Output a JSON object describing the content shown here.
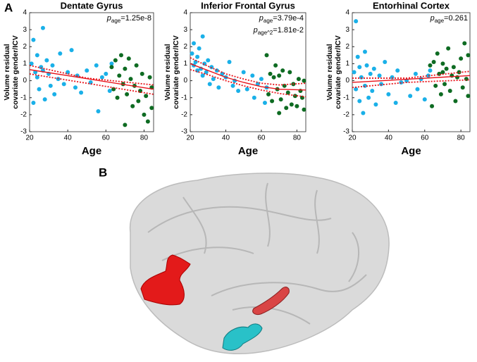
{
  "panel_labels": [
    "A",
    "B"
  ],
  "chart_data": [
    {
      "type": "scatter",
      "title": "Dentate Gyrus",
      "xlabel": "Age",
      "ylabel": [
        "Volume residual",
        "covariate gender/ICV"
      ],
      "annotations": [
        {
          "symbol": "p",
          "subscript": "age",
          "text": "=1.25e-8"
        }
      ],
      "xlim": [
        20,
        85
      ],
      "xticks": [
        20,
        40,
        60,
        80
      ],
      "ylim": [
        -3,
        4
      ],
      "yticks": [
        -3,
        -2,
        -1,
        0,
        1,
        2,
        3,
        4
      ],
      "series": [
        {
          "kind": "scatter",
          "color": "#1ab0e8",
          "x": [
            21,
            22,
            22,
            23,
            24,
            24,
            25,
            26,
            27,
            27,
            28,
            29,
            30,
            31,
            32,
            33,
            35,
            36,
            38,
            40,
            42,
            44,
            45,
            47,
            50,
            52,
            55,
            56,
            58,
            60,
            62,
            63
          ],
          "values": [
            1.0,
            2.4,
            -1.3,
            0.5,
            1.5,
            0.2,
            -0.5,
            0.8,
            3.1,
            0.6,
            -1.1,
            1.2,
            0.4,
            -0.3,
            0.9,
            -0.8,
            0.1,
            1.6,
            -0.2,
            0.5,
            1.8,
            -0.4,
            0.3,
            -0.7,
            0.6,
            -0.1,
            0.9,
            -1.8,
            0.2,
            0.4,
            -0.6,
            1.0
          ]
        },
        {
          "kind": "scatter",
          "color": "#0e6b22",
          "x": [
            63,
            64,
            65,
            66,
            67,
            68,
            69,
            70,
            70,
            71,
            72,
            73,
            74,
            75,
            76,
            77,
            78,
            79,
            80,
            81,
            82,
            83,
            84,
            84
          ],
          "values": [
            0.8,
            -0.5,
            1.2,
            -1.0,
            0.3,
            1.5,
            -0.2,
            -2.6,
            0.7,
            -0.8,
            1.3,
            0.1,
            -1.5,
            -0.3,
            0.9,
            -1.2,
            -0.6,
            0.4,
            -2.0,
            -0.9,
            -2.4,
            0.2,
            -1.6,
            -0.4
          ]
        },
        {
          "kind": "line",
          "style": "solid",
          "color": "#e8141b",
          "x": [
            20,
            85
          ],
          "values": [
            0.65,
            -0.5
          ]
        },
        {
          "kind": "line",
          "style": "dotted",
          "color": "#e8141b",
          "x": [
            20,
            50,
            85
          ],
          "values": [
            0.9,
            0.15,
            -0.25
          ]
        },
        {
          "kind": "line",
          "style": "dotted",
          "color": "#e8141b",
          "x": [
            20,
            50,
            85
          ],
          "values": [
            0.4,
            -0.15,
            -0.8
          ]
        }
      ]
    },
    {
      "type": "scatter",
      "title": "Inferior Frontal Gyrus",
      "xlabel": "Age",
      "ylabel": [
        "Volume residual",
        "covariate gender/ICV"
      ],
      "annotations": [
        {
          "symbol": "p",
          "subscript": "age",
          "text": "=3.79e-4"
        },
        {
          "symbol": "p",
          "subscript": "age^2",
          "text": "=1.81e-2"
        }
      ],
      "xlim": [
        20,
        85
      ],
      "xticks": [
        20,
        40,
        60,
        80
      ],
      "ylim": [
        -3,
        4
      ],
      "yticks": [
        -3,
        -2,
        -1,
        0,
        1,
        2,
        3,
        4
      ],
      "series": [
        {
          "kind": "scatter",
          "color": "#1ab0e8",
          "x": [
            21,
            22,
            22,
            23,
            24,
            24,
            25,
            26,
            27,
            27,
            28,
            29,
            30,
            31,
            32,
            33,
            35,
            36,
            38,
            40,
            42,
            44,
            45,
            47,
            50,
            52,
            55,
            56,
            58,
            60,
            62,
            63
          ],
          "values": [
            1.6,
            2.2,
            0.9,
            1.1,
            1.4,
            0.6,
            1.9,
            0.7,
            2.6,
            0.3,
            1.0,
            0.5,
            1.2,
            -0.2,
            0.8,
            0.1,
            0.6,
            -0.4,
            0.4,
            0.2,
            1.1,
            -0.3,
            0.0,
            -0.6,
            0.5,
            -0.5,
            0.3,
            -1.0,
            -0.2,
            0.1,
            -1.3,
            -0.4
          ]
        },
        {
          "kind": "scatter",
          "color": "#0e6b22",
          "x": [
            63,
            64,
            65,
            66,
            67,
            68,
            69,
            70,
            70,
            71,
            72,
            73,
            74,
            75,
            76,
            77,
            78,
            79,
            80,
            81,
            82,
            83,
            84,
            84
          ],
          "values": [
            1.5,
            -0.8,
            0.4,
            -1.2,
            0.2,
            0.9,
            -0.5,
            -1.9,
            0.3,
            -1.1,
            0.6,
            -0.3,
            -1.6,
            -0.7,
            0.5,
            -1.4,
            -0.2,
            -0.9,
            -1.5,
            0.1,
            -0.6,
            -1.0,
            -1.7,
            0.0
          ]
        },
        {
          "kind": "line",
          "style": "solid",
          "color": "#e8141b",
          "x": [
            20,
            30,
            40,
            50,
            60,
            70,
            85
          ],
          "values": [
            1.0,
            0.6,
            0.2,
            -0.1,
            -0.35,
            -0.5,
            -0.55
          ]
        },
        {
          "kind": "line",
          "style": "dotted",
          "color": "#e8141b",
          "x": [
            20,
            30,
            40,
            50,
            60,
            70,
            85
          ],
          "values": [
            1.35,
            0.85,
            0.4,
            0.1,
            -0.15,
            -0.25,
            -0.15
          ]
        },
        {
          "kind": "line",
          "style": "dotted",
          "color": "#e8141b",
          "x": [
            20,
            30,
            40,
            50,
            60,
            70,
            85
          ],
          "values": [
            0.65,
            0.35,
            0.0,
            -0.3,
            -0.55,
            -0.75,
            -0.95
          ]
        }
      ]
    },
    {
      "type": "scatter",
      "title": "Entorhinal Cortex",
      "xlabel": "Age",
      "ylabel": [
        "Volume residual",
        "covariate gender/ICV"
      ],
      "annotations": [
        {
          "symbol": "p",
          "subscript": "age",
          "text": "=0.261"
        }
      ],
      "xlim": [
        20,
        85
      ],
      "xticks": [
        20,
        40,
        60,
        80
      ],
      "ylim": [
        -3,
        4
      ],
      "yticks": [
        -3,
        -2,
        -1,
        0,
        1,
        2,
        3,
        4
      ],
      "series": [
        {
          "kind": "scatter",
          "color": "#1ab0e8",
          "x": [
            21,
            22,
            22,
            23,
            24,
            24,
            25,
            26,
            27,
            27,
            28,
            29,
            30,
            31,
            32,
            33,
            35,
            36,
            38,
            40,
            42,
            44,
            45,
            47,
            50,
            52,
            55,
            56,
            58,
            60,
            62,
            63
          ],
          "values": [
            0.5,
            3.5,
            -0.5,
            1.4,
            -1.2,
            0.8,
            0.2,
            -1.9,
            1.7,
            -0.3,
            0.9,
            -1.0,
            0.4,
            -0.6,
            0.7,
            -1.4,
            0.3,
            -0.2,
            1.1,
            -0.8,
            0.2,
            -1.3,
            0.6,
            -0.1,
            0.0,
            -0.9,
            0.4,
            -0.5,
            0.1,
            -1.1,
            0.3,
            0.6
          ]
        },
        {
          "kind": "scatter",
          "color": "#0e6b22",
          "x": [
            63,
            64,
            65,
            66,
            67,
            68,
            69,
            70,
            70,
            71,
            72,
            73,
            74,
            75,
            76,
            77,
            78,
            79,
            80,
            81,
            82,
            83,
            84,
            84
          ],
          "values": [
            0.9,
            -1.5,
            1.1,
            -0.3,
            1.6,
            0.4,
            -0.8,
            0.5,
            1.0,
            -0.2,
            0.7,
            1.9,
            -0.6,
            0.3,
            0.8,
            -1.2,
            0.2,
            0.5,
            1.3,
            -0.4,
            2.2,
            0.1,
            -0.9,
            1.5
          ]
        },
        {
          "kind": "line",
          "style": "solid",
          "color": "#e8141b",
          "x": [
            20,
            85
          ],
          "values": [
            -0.1,
            0.3
          ]
        },
        {
          "kind": "line",
          "style": "dotted",
          "color": "#e8141b",
          "x": [
            20,
            50,
            85
          ],
          "values": [
            0.15,
            0.15,
            0.55
          ]
        },
        {
          "kind": "line",
          "style": "dotted",
          "color": "#e8141b",
          "x": [
            20,
            50,
            85
          ],
          "values": [
            -0.4,
            -0.1,
            0.05
          ]
        }
      ]
    }
  ]
}
